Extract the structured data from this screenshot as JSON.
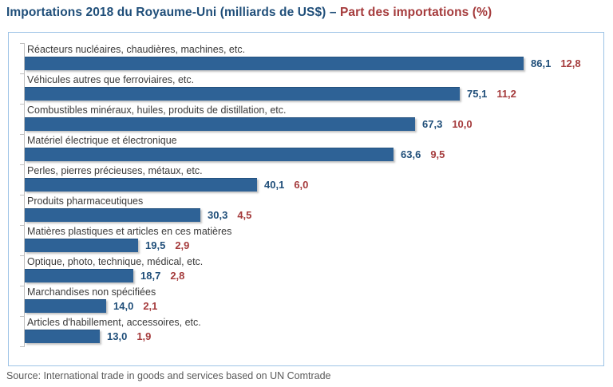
{
  "title": {
    "blue": "Importations 2018 du Royaume-Uni (milliards de US$) – ",
    "red": "Part des importations (%)"
  },
  "chart_data": {
    "type": "bar",
    "orientation": "horizontal",
    "title": "Importations 2018 du Royaume-Uni (milliards de US$) – Part des importations (%)",
    "categories": [
      "Réacteurs nucléaires, chaudières, machines, etc.",
      "Véhicules autres que ferroviaires, etc.",
      "Combustibles minéraux, huiles, produits de distillation, etc.",
      "Matériel électrique et électronique",
      "Perles, pierres précieuses, métaux, etc.",
      "Produits pharmaceutiques",
      "Matières plastiques et articles en ces matières",
      "Optique, photo, technique, médical, etc.",
      "Marchandises non spécifiées",
      "Articles d'habillement, accessoires, etc."
    ],
    "series": [
      {
        "name": "Importations (milliards de US$)",
        "values": [
          86.1,
          75.1,
          67.3,
          63.6,
          40.1,
          30.3,
          19.5,
          18.7,
          14.0,
          13.0
        ],
        "labels": [
          "86,1",
          "75,1",
          "67,3",
          "63,6",
          "40,1",
          "30,3",
          "19,5",
          "18,7",
          "14,0",
          "13,0"
        ],
        "label_color": "#1F4E79"
      },
      {
        "name": "Part des importations (%)",
        "values": [
          12.8,
          11.2,
          10.0,
          9.5,
          6.0,
          4.5,
          2.9,
          2.8,
          2.1,
          1.9
        ],
        "labels": [
          "12,8",
          "11,2",
          "10,0",
          "9,5",
          "6,0",
          "4,5",
          "2,9",
          "2,8",
          "2,1",
          "1,9"
        ],
        "label_color": "#A53B3C"
      }
    ],
    "bar_color": "#2E6296",
    "xlim": [
      0,
      90
    ],
    "grid": false,
    "legend": "none"
  },
  "source": "Source: International trade in goods and services based on UN Comtrade",
  "colors": {
    "title_blue": "#1F4E79",
    "title_red": "#A53B3C",
    "bar": "#2E6296",
    "box_border": "#9DC3E6",
    "axis": "#BFBFBF",
    "category_text": "#3A3A3A",
    "source_text": "#595959"
  }
}
